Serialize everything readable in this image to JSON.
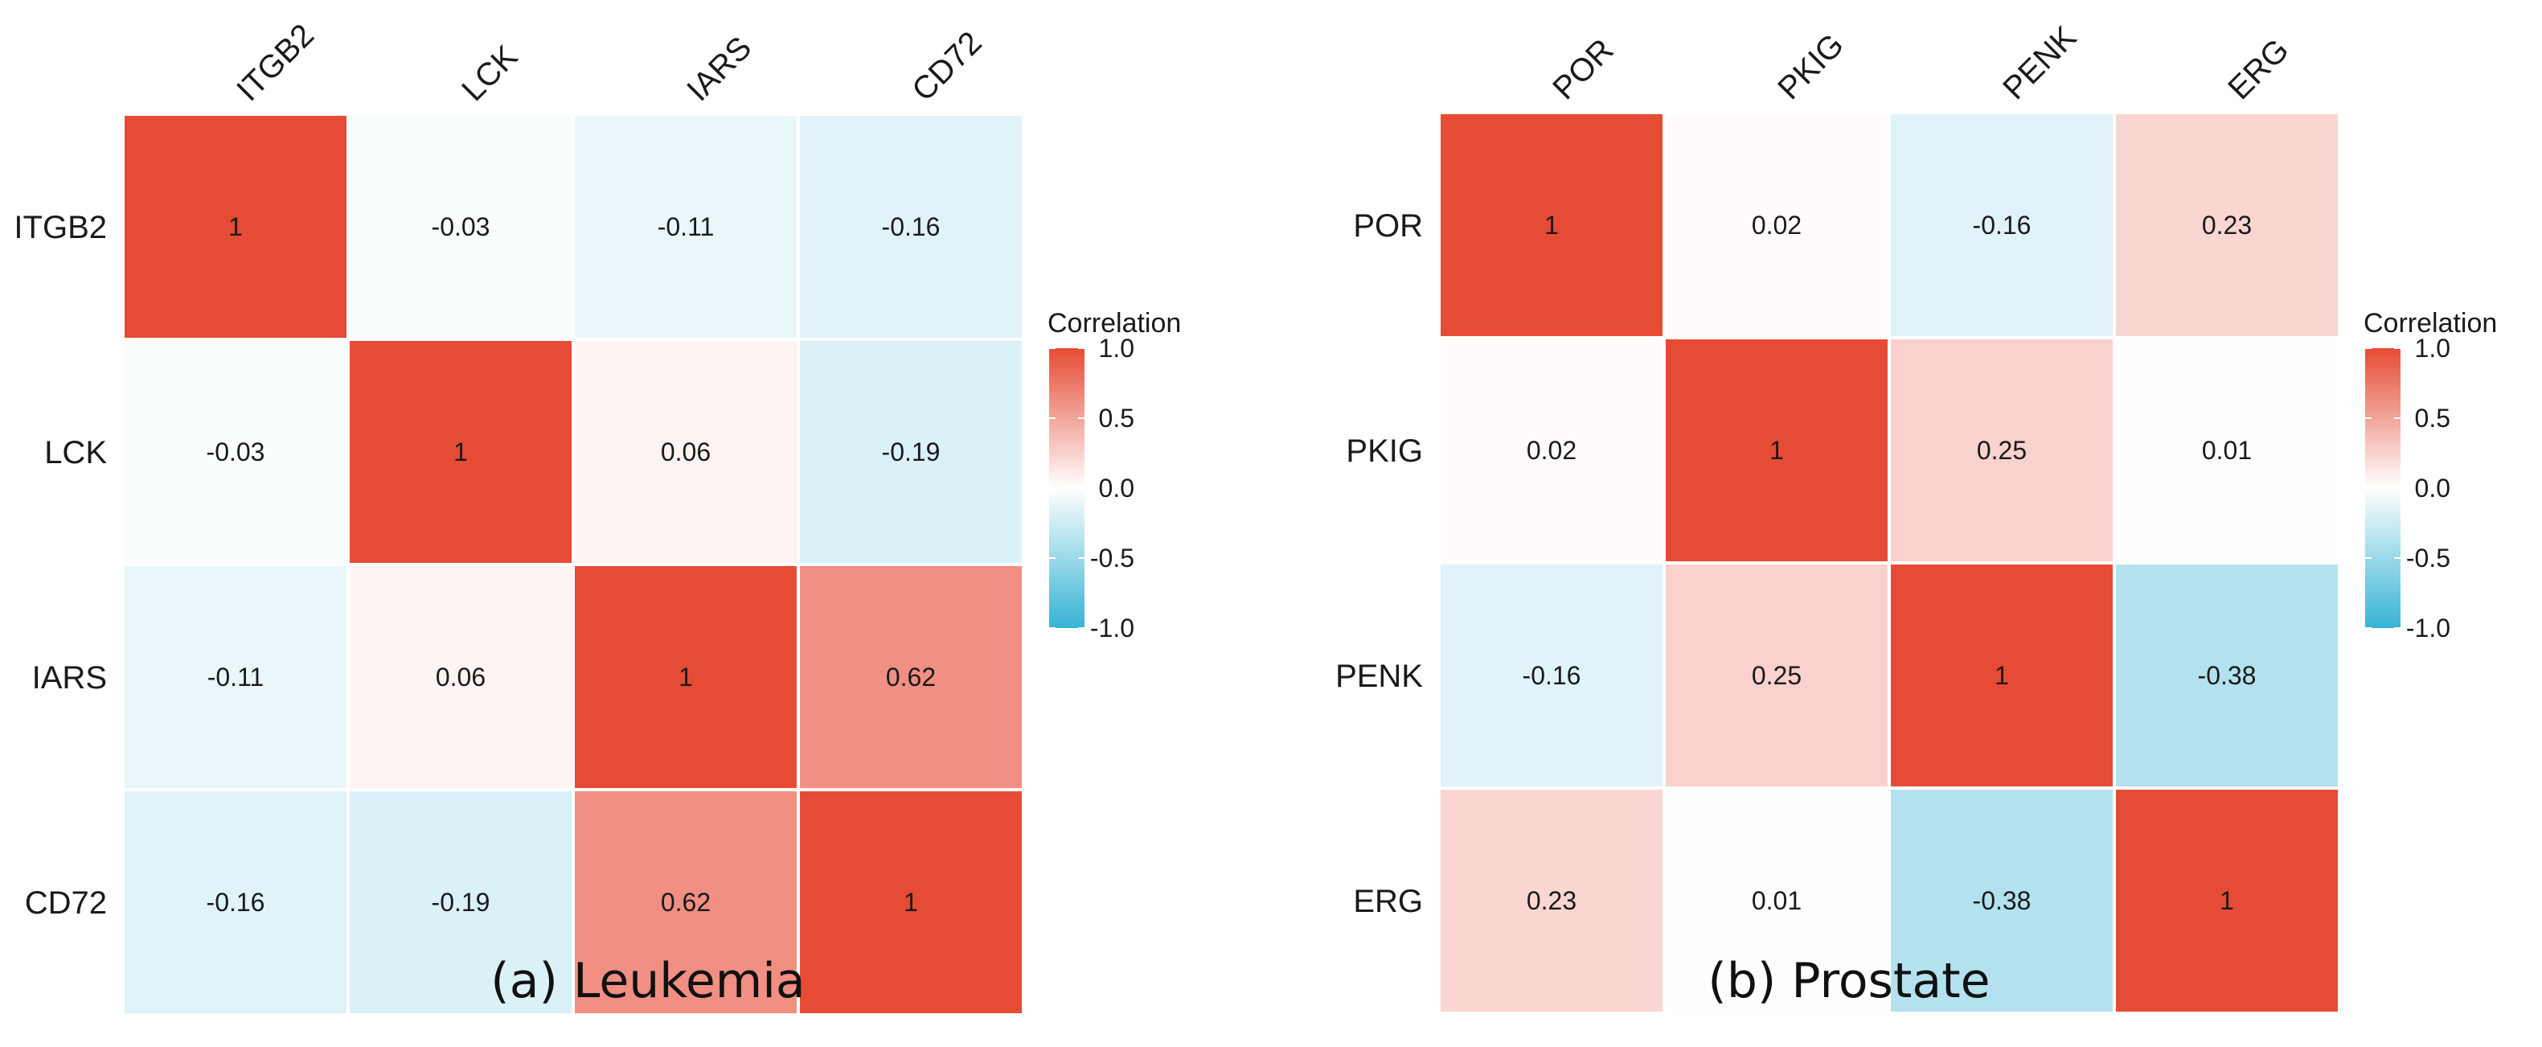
{
  "colors": {
    "high": "#E64B35",
    "mid": "#FFFFFF",
    "low": "#36B3D3",
    "text": "#1a1a1a"
  },
  "chart_data": [
    {
      "type": "heatmap",
      "caption": "(a) Leukemia",
      "rows": [
        "ITGB2",
        "LCK",
        "IARS",
        "CD72"
      ],
      "columns": [
        "ITGB2",
        "LCK",
        "IARS",
        "CD72"
      ],
      "values": [
        [
          1,
          -0.03,
          -0.11,
          -0.16
        ],
        [
          -0.03,
          1,
          0.06,
          -0.19
        ],
        [
          -0.11,
          0.06,
          1,
          0.62
        ],
        [
          -0.16,
          -0.19,
          0.62,
          1
        ]
      ],
      "labels": [
        [
          "1",
          "-0.03",
          "-0.11",
          "-0.16"
        ],
        [
          "-0.03",
          "1",
          "0.06",
          "-0.19"
        ],
        [
          "-0.11",
          "0.06",
          "1",
          "0.62"
        ],
        [
          "-0.16",
          "-0.19",
          "0.62",
          "1"
        ]
      ],
      "legend": {
        "title": "Correlation",
        "range": [
          -1,
          1
        ],
        "ticks": [
          "1.0",
          "0.5",
          "0.0",
          "-0.5",
          "-1.0"
        ]
      }
    },
    {
      "type": "heatmap",
      "caption": "(b) Prostate",
      "rows": [
        "POR",
        "PKIG",
        "PENK",
        "ERG"
      ],
      "columns": [
        "POR",
        "PKIG",
        "PENK",
        "ERG"
      ],
      "values": [
        [
          1,
          0.02,
          -0.16,
          0.23
        ],
        [
          0.02,
          1,
          0.25,
          0.01
        ],
        [
          -0.16,
          0.25,
          1,
          -0.38
        ],
        [
          0.23,
          0.01,
          -0.38,
          1
        ]
      ],
      "labels": [
        [
          "1",
          "0.02",
          "-0.16",
          "0.23"
        ],
        [
          "0.02",
          "1",
          "0.25",
          "0.01"
        ],
        [
          "-0.16",
          "0.25",
          "1",
          "-0.38"
        ],
        [
          "0.23",
          "0.01",
          "-0.38",
          "1"
        ]
      ],
      "legend": {
        "title": "Correlation",
        "range": [
          -1,
          1
        ],
        "ticks": [
          "1.0",
          "0.5",
          "0.0",
          "-0.5",
          "-1.0"
        ]
      }
    }
  ]
}
